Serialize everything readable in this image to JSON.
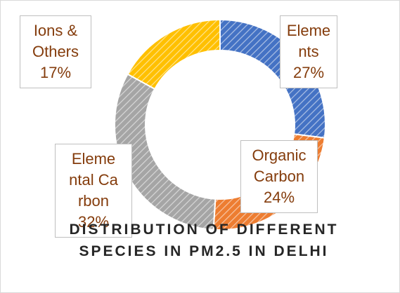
{
  "chart_data": {
    "type": "donut",
    "title": "DISTRIBUTION OF DIFFERENT SPECIES IN PM2.5 IN DELHI",
    "categories": [
      "Elements",
      "Organic Carbon",
      "Elemental Carbon",
      "Ions & Others"
    ],
    "values": [
      27,
      24,
      32,
      17
    ],
    "value_labels": [
      "27%",
      "24%",
      "32%",
      "17%"
    ],
    "colors": [
      "#4472c4",
      "#ed7d31",
      "#a5a5a5",
      "#ffc000"
    ]
  }
}
